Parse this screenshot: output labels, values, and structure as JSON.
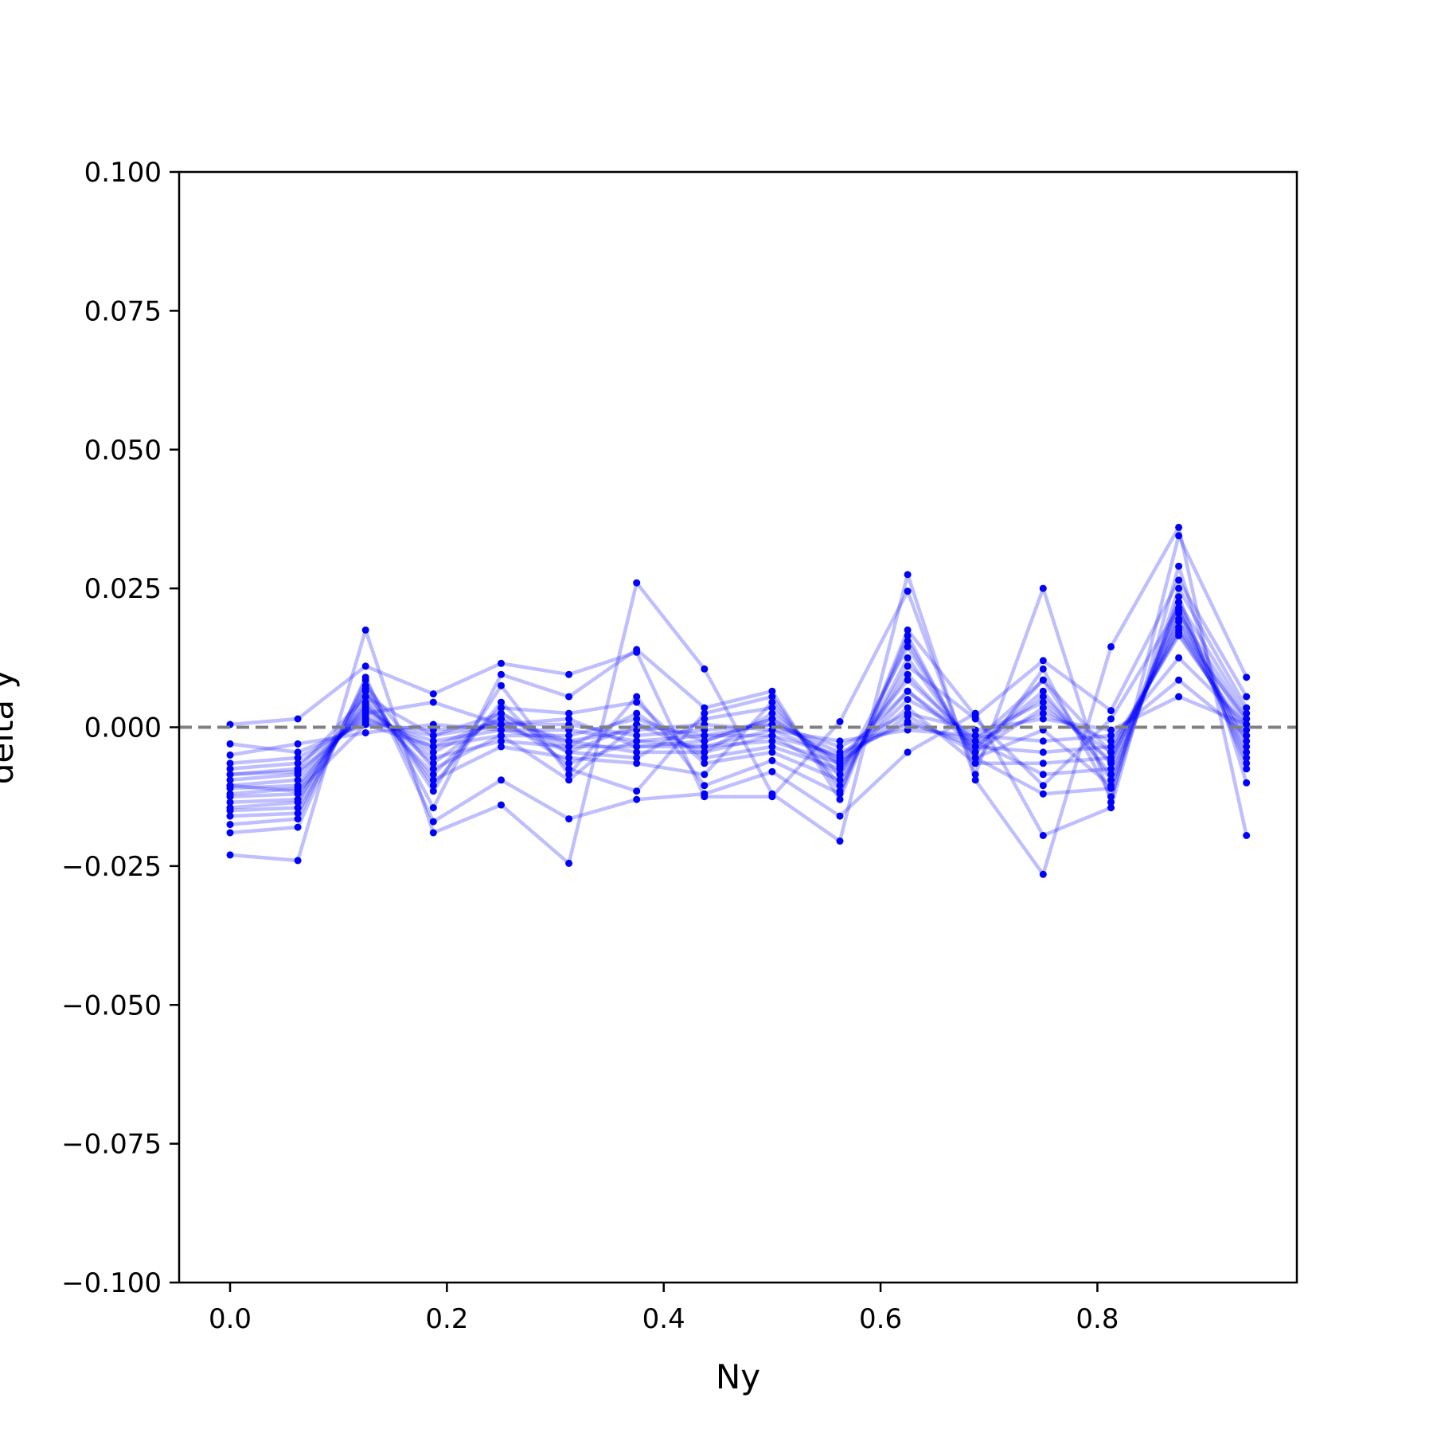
{
  "chart_data": {
    "type": "line",
    "title": "",
    "xlabel": "Ny",
    "ylabel": "delta y",
    "xlim": [
      -0.047,
      0.984
    ],
    "ylim": [
      -0.1,
      0.1
    ],
    "x_ticks": [
      0.0,
      0.2,
      0.4,
      0.6,
      0.8
    ],
    "x_tick_labels": [
      "0.0",
      "0.2",
      "0.4",
      "0.6",
      "0.8"
    ],
    "y_ticks": [
      0.1,
      0.075,
      0.05,
      0.025,
      0.0,
      -0.025,
      -0.05,
      -0.075,
      -0.1
    ],
    "y_tick_labels": [
      "0.100",
      "0.075",
      "0.050",
      "0.025",
      "0.000",
      "−0.025",
      "−0.050",
      "−0.075",
      "−0.100"
    ],
    "grid": false,
    "legend": "none",
    "line_color": "#0000ff",
    "line_opacity": 0.25,
    "marker_color": "#0000ff",
    "reference_line": {
      "y": 0.0,
      "style": "dashed",
      "color": "#808080"
    },
    "x": [
      0.0,
      0.0625,
      0.125,
      0.1875,
      0.25,
      0.3125,
      0.375,
      0.4375,
      0.5,
      0.5625,
      0.625,
      0.6875,
      0.75,
      0.8125,
      0.875,
      0.9375
    ],
    "series": [
      {
        "values": [
          -0.023,
          -0.024,
          0.0175,
          -0.019,
          -0.014,
          -0.0245,
          0.026,
          0.0105,
          -0.012,
          -0.0205,
          0.0275,
          -0.0095,
          -0.0265,
          0.0145,
          0.036,
          -0.0195
        ]
      },
      {
        "values": [
          0.0005,
          0.0015,
          0.011,
          0.006,
          0.0115,
          0.0095,
          0.0135,
          -0.0125,
          -0.0125,
          0.001,
          0.0245,
          -0.0085,
          0.025,
          -0.0135,
          0.0345,
          0.009
        ]
      },
      {
        "values": [
          -0.019,
          -0.018,
          0.009,
          -0.017,
          -0.0095,
          -0.0165,
          -0.013,
          -0.012,
          -0.008,
          -0.016,
          -0.0045,
          0.0025,
          -0.0195,
          -0.0145,
          0.029,
          -0.01
        ]
      },
      {
        "values": [
          -0.0175,
          -0.0165,
          0.0085,
          -0.0145,
          0.0095,
          0.0055,
          0.014,
          0.0035,
          0.0065,
          -0.013,
          0.0175,
          0.002,
          0.012,
          0.003,
          0.0265,
          0.0055
        ]
      },
      {
        "values": [
          -0.016,
          -0.0155,
          0.007,
          -0.0115,
          0.0075,
          -0.0085,
          0.0055,
          -0.0105,
          -0.006,
          -0.012,
          0.0165,
          -0.0065,
          0.0105,
          -0.0125,
          0.025,
          0.0035
        ]
      },
      {
        "values": [
          -0.015,
          -0.0145,
          0.0065,
          -0.0105,
          0.0045,
          -0.0075,
          -0.0115,
          0.0025,
          0.0055,
          -0.0115,
          0.0155,
          -0.0055,
          -0.012,
          -0.011,
          0.0235,
          -0.0075
        ]
      },
      {
        "values": [
          -0.0135,
          -0.013,
          0.0055,
          -0.0095,
          -0.0035,
          -0.0055,
          -0.0065,
          -0.0085,
          0.0045,
          -0.0105,
          0.0125,
          -0.0045,
          0.0085,
          -0.0095,
          0.0225,
          0.0025
        ]
      },
      {
        "values": [
          -0.0125,
          -0.012,
          0.0045,
          -0.0085,
          0.0035,
          0.0025,
          0.0045,
          -0.0065,
          -0.0045,
          -0.0095,
          0.011,
          0.0015,
          -0.0105,
          0.0015,
          0.0215,
          -0.0065
        ]
      },
      {
        "values": [
          -0.012,
          -0.011,
          0.004,
          -0.0065,
          0.0025,
          -0.0045,
          -0.0055,
          0.0015,
          0.0035,
          -0.0085,
          0.0095,
          -0.0035,
          0.0065,
          -0.0085,
          0.0205,
          0.0015
        ]
      },
      {
        "values": [
          -0.011,
          -0.0105,
          0.0035,
          -0.0055,
          -0.0025,
          -0.0035,
          0.0025,
          -0.0055,
          -0.0035,
          -0.0075,
          0.0065,
          -0.0025,
          -0.0085,
          -0.0075,
          0.0195,
          -0.0045
        ]
      },
      {
        "values": [
          -0.0105,
          -0.0095,
          0.003,
          -0.0045,
          0.0015,
          -0.0025,
          -0.0045,
          -0.0045,
          0.0025,
          -0.007,
          0.005,
          -0.0015,
          0.0045,
          -0.006,
          0.019,
          0.0005
        ]
      },
      {
        "values": [
          -0.0095,
          -0.0085,
          0.0025,
          0.0045,
          0.0005,
          0.0015,
          -0.0035,
          -0.0035,
          -0.0025,
          -0.0065,
          0.0035,
          -0.0065,
          -0.0065,
          -0.0055,
          0.018,
          -0.0025
        ]
      },
      {
        "values": [
          -0.0085,
          -0.008,
          0.002,
          -0.0035,
          -0.0015,
          -0.0015,
          0.0015,
          -0.0025,
          0.0015,
          -0.006,
          0.002,
          -0.0045,
          0.0035,
          -0.0045,
          0.017,
          -0.0015
        ]
      },
      {
        "values": [
          -0.0075,
          -0.0065,
          0.0015,
          -0.0025,
          -0.0005,
          -0.0005,
          -0.0025,
          -0.0015,
          -0.0015,
          -0.005,
          0.001,
          -0.0035,
          -0.0045,
          -0.0035,
          0.0165,
          -0.0005
        ]
      },
      {
        "values": [
          -0.0065,
          -0.0055,
          0.001,
          -0.0015,
          0.0005,
          0.0005,
          -0.0015,
          -0.0005,
          0.0005,
          -0.0045,
          0.0005,
          -0.0025,
          0.0025,
          -0.0025,
          0.0125,
          0.0005
        ]
      },
      {
        "values": [
          -0.005,
          -0.003,
          -0.001,
          0.0005,
          -0.0005,
          -0.0025,
          -0.0005,
          0.0005,
          -0.0005,
          -0.0025,
          -0.0005,
          -0.0015,
          -0.0025,
          -0.0015,
          0.0085,
          -0.0015
        ]
      },
      {
        "values": [
          -0.003,
          -0.0045,
          0.0005,
          -0.0005,
          0.0005,
          -0.0045,
          0.0005,
          -0.0015,
          0.0005,
          -0.0035,
          0.0025,
          -0.0005,
          0.0015,
          -0.0005,
          0.0055,
          0.0005
        ]
      },
      {
        "values": [
          -0.0105,
          -0.0115,
          0.0005,
          -0.0035,
          0.0015,
          -0.0065,
          -0.0025,
          -0.0035,
          -0.0005,
          -0.0055,
          0.0065,
          -0.0035,
          0.0055,
          -0.0065,
          0.021,
          -0.0035
        ]
      },
      {
        "values": [
          -0.0145,
          -0.0135,
          0.0075,
          -0.0075,
          -0.0015,
          -0.0095,
          0.0005,
          -0.0045,
          -0.0015,
          -0.0085,
          0.0145,
          -0.0055,
          -0.0005,
          -0.0105,
          0.0225,
          -0.0055
        ]
      },
      {
        "values": [
          -0.0085,
          -0.0075,
          0.0055,
          -0.0015,
          0.0025,
          -0.0035,
          -0.0035,
          -0.0025,
          0.0015,
          -0.0065,
          0.0085,
          -0.0025,
          0.0085,
          -0.0045,
          0.0175,
          0.0015
        ]
      }
    ]
  }
}
